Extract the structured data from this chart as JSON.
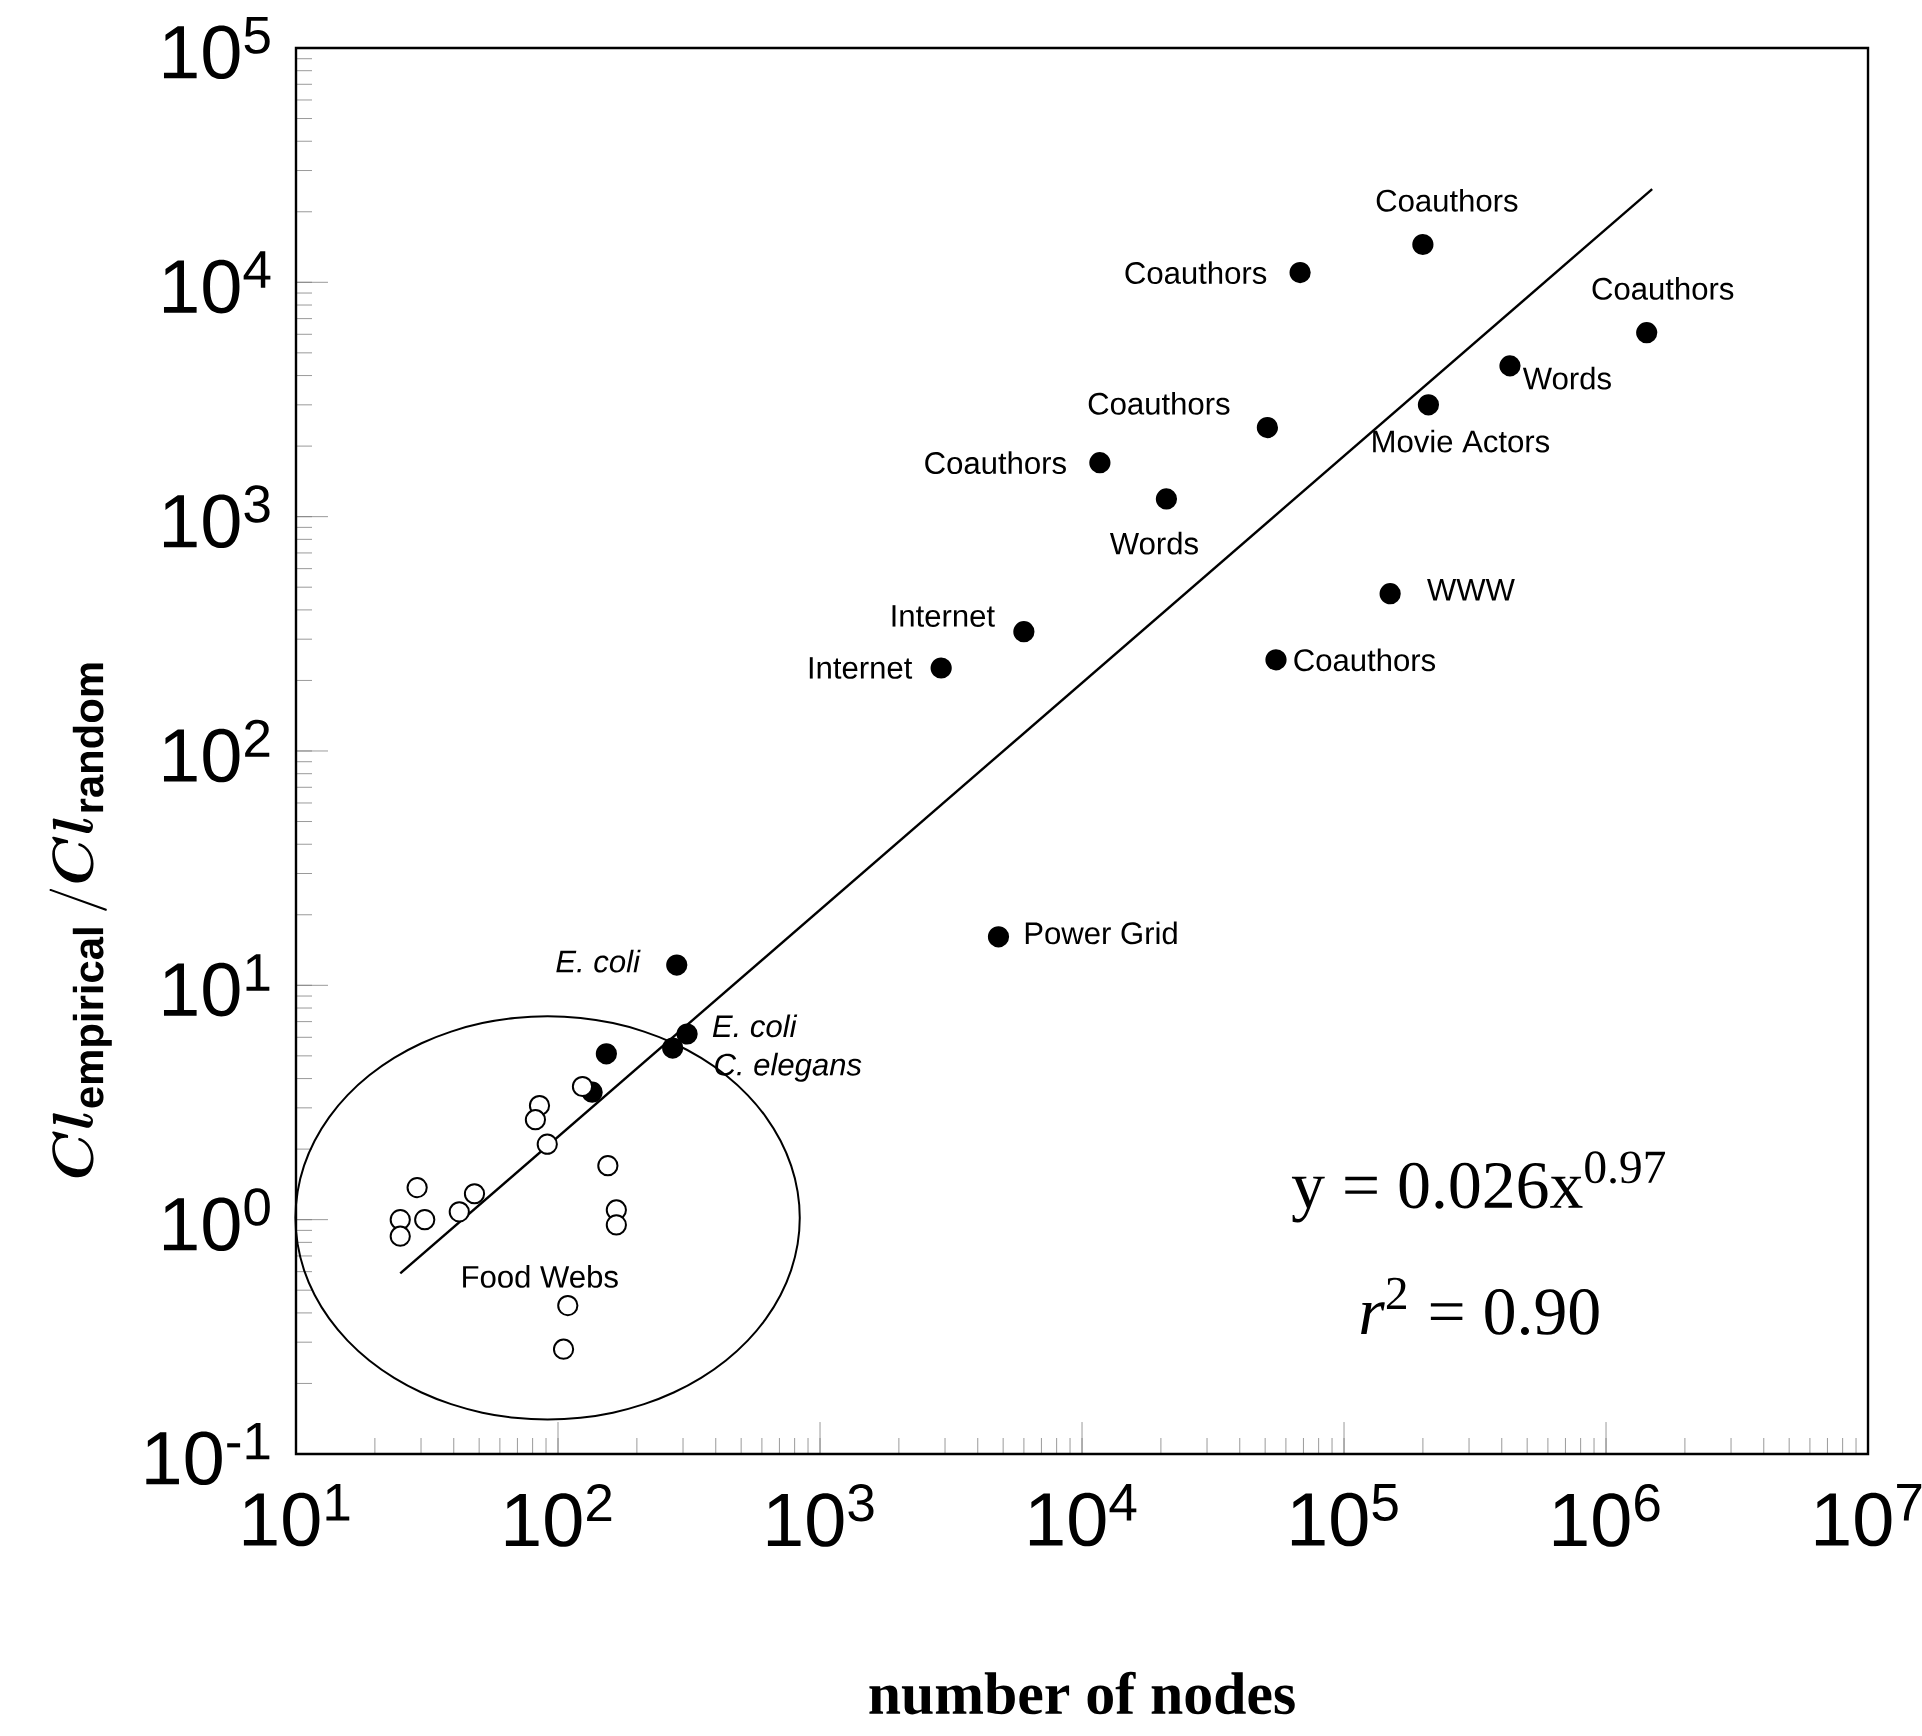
{
  "chart_data": {
    "type": "scatter",
    "xlabel": "number of nodes",
    "ylabel": "\\boldsymbol{Cl}_{\\mathbf{empirical}}\\,/\\boldsymbol{Cl}_{\\mathbf{random}}",
    "log": "xy",
    "marker": "circle",
    "xlim": [
      10,
      10000000
    ],
    "ylim": [
      0.1,
      100000
    ],
    "xticks": [
      {
        "value": 10,
        "label": "10$^{1}$"
      },
      {
        "value": 100,
        "label": "10$^{2}$"
      },
      {
        "value": 1000,
        "label": "10$^{3}$"
      },
      {
        "value": 10000,
        "label": "10$^{4}$"
      },
      {
        "value": 100000,
        "label": "10$^{5}$"
      },
      {
        "value": 1000000,
        "label": "10$^{6}$"
      },
      {
        "value": 10000000,
        "label": "10$^{7}$"
      }
    ],
    "yticks": [
      {
        "value": 0.1,
        "label": "10$^{-1}$"
      },
      {
        "value": 1,
        "label": "10$^{0}$"
      },
      {
        "value": 10,
        "label": "10$^{1}$"
      },
      {
        "value": 100,
        "label": "10$^{2}$"
      },
      {
        "value": 1000,
        "label": "10$^{3}$"
      },
      {
        "value": 10000,
        "label": "10$^{4}$"
      },
      {
        "value": 100000,
        "label": "10$^{5}$"
      }
    ],
    "series": [
      {
        "color": "#000000",
        "x": [
          68000,
          200000,
          1430000,
          430000,
          210000,
          51000,
          11700,
          21000,
          6000,
          2900,
          150000,
          55000,
          4800,
          284,
          311,
          274,
          153,
          135
        ],
        "values": [
          11000,
          14500,
          6100,
          4400,
          3000,
          2400,
          1700,
          1190,
          323,
          226,
          469,
          245,
          16.1,
          12.2,
          6.2,
          5.4,
          5.1,
          3.5
        ]
      },
      {
        "name": "Food Webs",
        "color": "#ffffff",
        "x": [
          25,
          25,
          29,
          31,
          42,
          48,
          85,
          82,
          91,
          124,
          155,
          167,
          167,
          109,
          105
        ],
        "values": [
          1.0,
          0.85,
          1.37,
          1.0,
          1.08,
          1.29,
          3.07,
          2.67,
          2.1,
          3.7,
          1.7,
          1.1,
          0.95,
          0.43,
          0.28
        ]
      },
      {
        "type": "line",
        "marker": "none",
        "color": "#000000",
        "x": [
          25,
          1500000
        ],
        "values": [
          0.59,
          25000
        ]
      }
    ],
    "annotations": [
      {
        "text": "Coauthors",
        "x": 68000,
        "y": 11000
      },
      {
        "text": "Coauthors",
        "x": 200000,
        "y": 14500
      },
      {
        "text": "Coauthors",
        "x": 1430000,
        "y": 6100
      },
      {
        "text": "Words",
        "x": 430000,
        "y": 4400
      },
      {
        "text": "Movie Actors",
        "x": 210000,
        "y": 3000
      },
      {
        "text": "Coauthors",
        "x": 51000,
        "y": 2400
      },
      {
        "text": "Coauthors",
        "x": 11700,
        "y": 1700
      },
      {
        "text": "Words",
        "x": 21000,
        "y": 1190
      },
      {
        "text": "Internet",
        "x": 6000,
        "y": 323
      },
      {
        "text": "Internet",
        "x": 2900,
        "y": 226
      },
      {
        "text": "WWW",
        "x": 150000,
        "y": 469
      },
      {
        "text": "Coauthors",
        "x": 55000,
        "y": 245
      },
      {
        "text": "Power Grid",
        "x": 4800,
        "y": 16.1
      },
      {
        "text": "E. coli",
        "x": 284,
        "y": 12.2
      },
      {
        "text": "E. coli",
        "x": 311,
        "y": 6.2
      },
      {
        "text": "C. elegans",
        "x": 274,
        "y": 5.4
      },
      "y = 0.026x$^{0.97}$",
      "*r*$^{2}$ = 0.90"
    ]
  }
}
